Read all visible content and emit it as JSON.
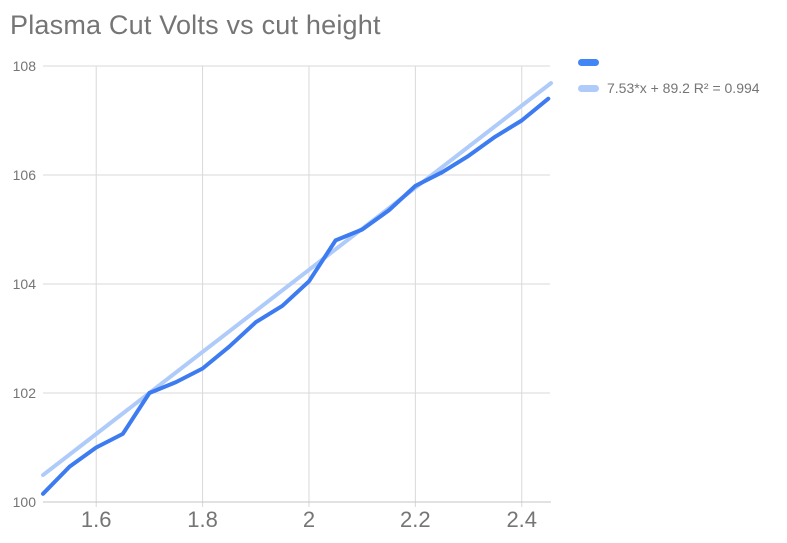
{
  "title": "Plasma Cut Volts vs cut height",
  "legend": {
    "items": [
      {
        "label": ""
      },
      {
        "label": "7.53*x + 89.2 R² = 0.994"
      }
    ]
  },
  "chart_data": {
    "type": "line",
    "title": "Plasma Cut Volts vs cut height",
    "xlabel": "",
    "ylabel": "",
    "xlim": [
      1.5,
      2.455
    ],
    "ylim": [
      100,
      108
    ],
    "grid": true,
    "legend_position": "right",
    "x_ticks": {
      "values": [
        1.6,
        1.8,
        2.0,
        2.2,
        2.4
      ],
      "labels": [
        "1.6",
        "1.8",
        "2",
        "2.2",
        "2.4"
      ]
    },
    "y_ticks": {
      "values": [
        100,
        102,
        104,
        106,
        108
      ],
      "labels": [
        "100",
        "102",
        "104",
        "106",
        "108"
      ]
    },
    "series": [
      {
        "name": "",
        "role": "data",
        "color": "#3D7BF0",
        "x": [
          1.5,
          1.55,
          1.6,
          1.65,
          1.7,
          1.75,
          1.8,
          1.85,
          1.9,
          1.95,
          2.0,
          2.05,
          2.1,
          2.15,
          2.2,
          2.25,
          2.3,
          2.35,
          2.4,
          2.45
        ],
        "y": [
          100.15,
          100.65,
          101.0,
          101.25,
          102.0,
          102.2,
          102.45,
          102.85,
          103.3,
          103.6,
          104.05,
          104.8,
          105.0,
          105.35,
          105.8,
          106.05,
          106.35,
          106.7,
          107.0,
          107.4
        ]
      },
      {
        "name": "trendline",
        "role": "trendline",
        "color": "#AECBFA",
        "slope": 7.53,
        "intercept": 89.2,
        "r2": 0.994,
        "label": "7.53*x + 89.2 R² = 0.994"
      }
    ],
    "colors": {
      "series_blue": "#3D7BF0",
      "series_swatch_blue": "#4285F4",
      "trend_blue": "#AECBFA",
      "gridline": "#D9D9D9",
      "axis_line": "#C4C4C4",
      "axis_text": "#757575",
      "title_text": "#757575"
    }
  }
}
